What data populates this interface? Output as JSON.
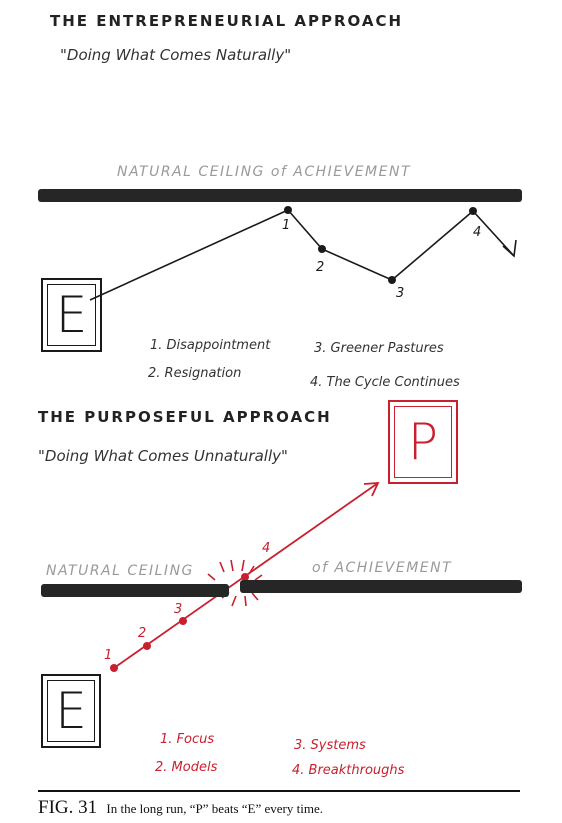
{
  "top": {
    "title": "THE ENTREPRENEURIAL APPROACH",
    "subtitle": "\"Doing What Comes Naturally\"",
    "ceiling_label": "NATURAL CEILING of ACHIEVEMENT",
    "box_letter": "E",
    "point_labels": [
      "1",
      "2",
      "3",
      "4"
    ],
    "legend": [
      "1. Disappointment",
      "2. Resignation",
      "3. Greener Pastures",
      "4. The Cycle Continues"
    ]
  },
  "bottom": {
    "title": "THE PURPOSEFUL APPROACH",
    "subtitle": "\"Doing What Comes Unnaturally\"",
    "ceiling_label_left": "NATURAL CEILING",
    "ceiling_label_right": "of ACHIEVEMENT",
    "start_letter": "E",
    "goal_letter": "P",
    "point_labels": [
      "1",
      "2",
      "3",
      "4"
    ],
    "legend": [
      "1. Focus",
      "2. Models",
      "3. Systems",
      "4. Breakthroughs"
    ]
  },
  "caption": {
    "fig_label": "FIG. 31",
    "text": "In the long run, “P” beats “E” every time."
  },
  "colors": {
    "ink": "#1a1a1a",
    "accent_red": "#c8202f",
    "ceiling_gray": "#9a9a9a"
  }
}
